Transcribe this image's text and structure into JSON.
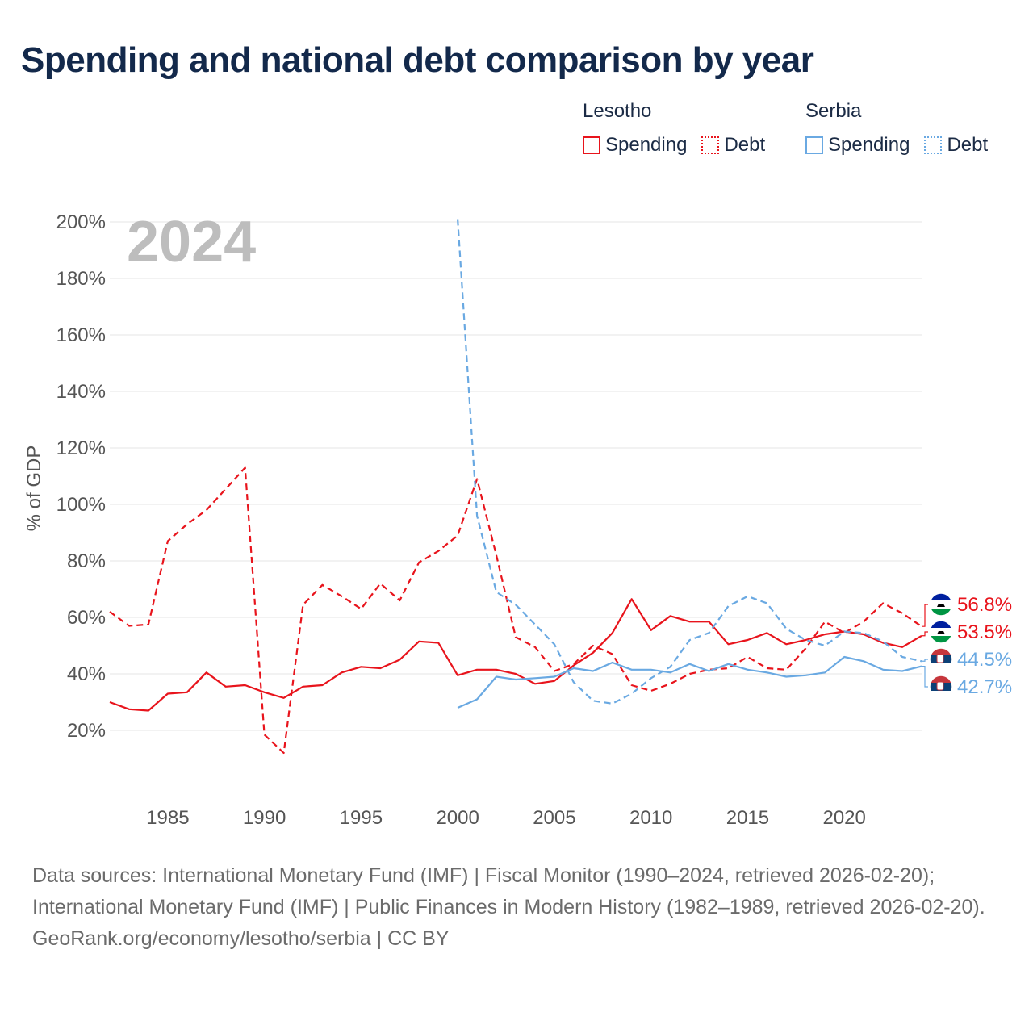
{
  "title": "Spending and national debt comparison by year",
  "legend": {
    "groups": [
      {
        "name": "Lesotho",
        "items": [
          "Spending",
          "Debt"
        ],
        "color": "#e8141c"
      },
      {
        "name": "Serbia",
        "items": [
          "Spending",
          "Debt"
        ],
        "color": "#6aa9e2"
      }
    ]
  },
  "footer": {
    "sources": "Data sources: International Monetary Fund (IMF) | Fiscal Monitor (1990–2024, retrieved 2026-02-20); International Monetary Fund (IMF) | Public Finances in Modern History (1982–1989, retrieved 2026-02-20).",
    "credit": "GeoRank.org/economy/lesotho/serbia | CC BY"
  },
  "chart_data": {
    "type": "line",
    "title": "Spending and national debt comparison by year",
    "year_label": "2024",
    "ylabel": "% of GDP",
    "xlabel": "",
    "xlim": [
      1982,
      2024
    ],
    "ylim": [
      0,
      200
    ],
    "yticks": [
      20,
      40,
      60,
      80,
      100,
      120,
      140,
      160,
      180,
      200
    ],
    "ytick_labels": [
      "20%",
      "40%",
      "60%",
      "80%",
      "100%",
      "120%",
      "140%",
      "160%",
      "180%",
      "200%"
    ],
    "xticks": [
      1985,
      1990,
      1995,
      2000,
      2005,
      2010,
      2015,
      2020
    ],
    "xtick_labels": [
      "1985",
      "1990",
      "1995",
      "2000",
      "2005",
      "2010",
      "2015",
      "2020"
    ],
    "grid": true,
    "series": [
      {
        "name": "Lesotho Spending",
        "country": "Lesotho",
        "metric": "Spending",
        "color": "#e8141c",
        "dash": "solid",
        "x": [
          1982,
          1983,
          1984,
          1985,
          1986,
          1987,
          1988,
          1989,
          1990,
          1991,
          1992,
          1993,
          1994,
          1995,
          1996,
          1997,
          1998,
          1999,
          2000,
          2001,
          2002,
          2003,
          2004,
          2005,
          2006,
          2007,
          2008,
          2009,
          2010,
          2011,
          2012,
          2013,
          2014,
          2015,
          2016,
          2017,
          2018,
          2019,
          2020,
          2021,
          2022,
          2023,
          2024
        ],
        "values": [
          30,
          27.5,
          27,
          33,
          33.5,
          40.5,
          35.5,
          36,
          33.5,
          31.5,
          35.5,
          36,
          40.5,
          42.5,
          42,
          45,
          51.5,
          51,
          39.5,
          41.5,
          41.5,
          40,
          36.5,
          37.5,
          43,
          47.5,
          54.5,
          66.5,
          55.5,
          60.5,
          58.5,
          58.5,
          50.5,
          52,
          54.5,
          50.5,
          52,
          54,
          55,
          54,
          51,
          49.5,
          53.5
        ],
        "end_label": "53.5%"
      },
      {
        "name": "Lesotho Debt",
        "country": "Lesotho",
        "metric": "Debt",
        "color": "#e8141c",
        "dash": "dashed",
        "x": [
          1982,
          1983,
          1984,
          1985,
          1986,
          1987,
          1988,
          1989,
          1990,
          1991,
          1992,
          1993,
          1994,
          1995,
          1996,
          1997,
          1998,
          1999,
          2000,
          2001,
          2002,
          2003,
          2004,
          2005,
          2006,
          2007,
          2008,
          2009,
          2010,
          2011,
          2012,
          2013,
          2014,
          2015,
          2016,
          2017,
          2018,
          2019,
          2020,
          2021,
          2022,
          2023,
          2024
        ],
        "values": [
          62,
          57,
          57.5,
          87,
          93,
          98,
          105.5,
          113,
          18.5,
          12,
          64.5,
          71.5,
          67.5,
          63,
          72,
          66,
          79.5,
          83.5,
          89,
          109,
          82,
          53,
          49.5,
          41,
          43.5,
          50,
          47,
          36,
          34,
          36.5,
          40,
          41.5,
          42,
          46,
          42,
          41.5,
          49,
          58.5,
          54.5,
          58.5,
          65,
          61.5,
          56.8
        ],
        "end_label": "56.8%"
      },
      {
        "name": "Serbia Spending",
        "country": "Serbia",
        "metric": "Spending",
        "color": "#6aa9e2",
        "dash": "solid",
        "x": [
          2000,
          2001,
          2002,
          2003,
          2004,
          2005,
          2006,
          2007,
          2008,
          2009,
          2010,
          2011,
          2012,
          2013,
          2014,
          2015,
          2016,
          2017,
          2018,
          2019,
          2020,
          2021,
          2022,
          2023,
          2024
        ],
        "values": [
          28,
          31,
          39,
          38,
          38.5,
          39,
          42,
          41,
          44,
          41.5,
          41.5,
          40.5,
          43.5,
          41,
          43.5,
          41.5,
          40.5,
          39,
          39.5,
          40.5,
          46,
          44.5,
          41.5,
          41,
          42.7
        ],
        "end_label": "42.7%"
      },
      {
        "name": "Serbia Debt",
        "country": "Serbia",
        "metric": "Debt",
        "color": "#6aa9e2",
        "dash": "dashed",
        "x": [
          2000,
          2001,
          2002,
          2003,
          2004,
          2005,
          2006,
          2007,
          2008,
          2009,
          2010,
          2011,
          2012,
          2013,
          2014,
          2015,
          2016,
          2017,
          2018,
          2019,
          2020,
          2021,
          2022,
          2023,
          2024
        ],
        "values": [
          201,
          96,
          69,
          64.5,
          57.5,
          50.5,
          37,
          30.5,
          29.5,
          33,
          38.5,
          42.5,
          52,
          54.5,
          64,
          67.5,
          65,
          56,
          52,
          50,
          55,
          54.5,
          51.5,
          46,
          44.5
        ],
        "end_label": "44.5%"
      }
    ]
  }
}
